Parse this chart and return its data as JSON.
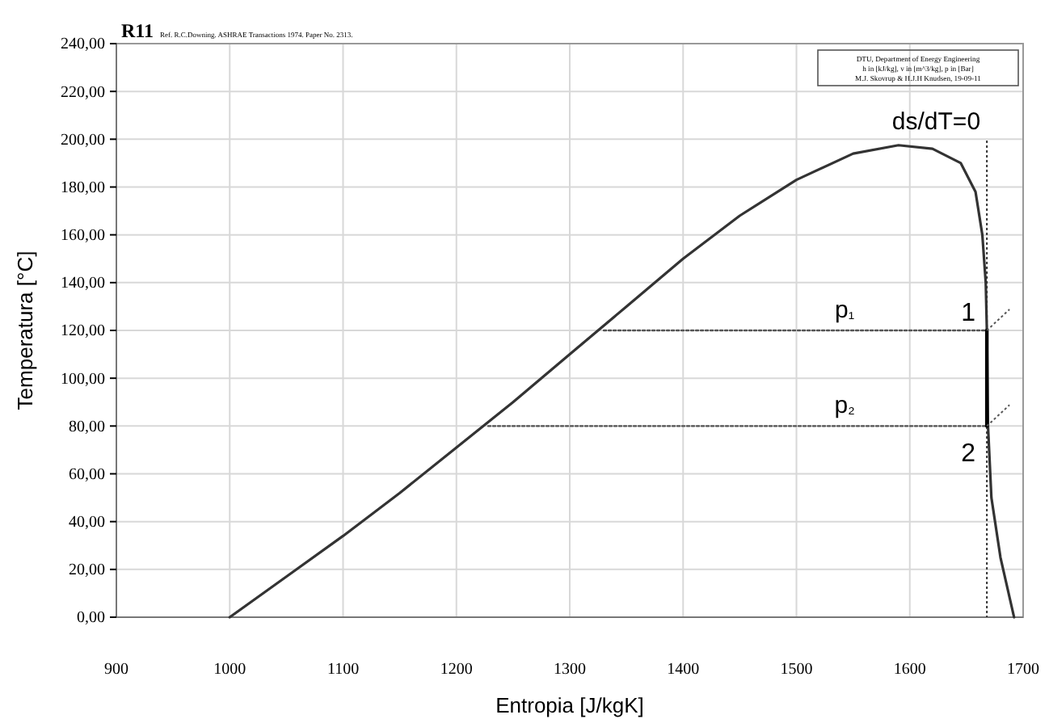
{
  "chart_data": {
    "type": "line",
    "title": "R11",
    "subtitle": "Ref. R.C.Downing. ASHRAE Transactions 1974. Paper No. 2313.",
    "xlabel": "Entropia [J/kgK]",
    "ylabel": "Temperatura [°C]",
    "xlim": [
      900,
      1700
    ],
    "xticks": [
      900,
      1000,
      1100,
      1200,
      1300,
      1400,
      1500,
      1600,
      1700
    ],
    "ylim": [
      0,
      240
    ],
    "yticks": [
      {
        "value": 0,
        "label": "0,00"
      },
      {
        "value": 20,
        "label": "20,00"
      },
      {
        "value": 40,
        "label": "40,00"
      },
      {
        "value": 60,
        "label": "60,00"
      },
      {
        "value": 80,
        "label": "80,00"
      },
      {
        "value": 100,
        "label": "100,00"
      },
      {
        "value": 120,
        "label": "120,00"
      },
      {
        "value": 140,
        "label": "140,00"
      },
      {
        "value": 160,
        "label": "160,00"
      },
      {
        "value": 180,
        "label": "180,00"
      },
      {
        "value": 200,
        "label": "200,00"
      },
      {
        "value": 220,
        "label": "220,00"
      },
      {
        "value": 240,
        "label": "240,00"
      }
    ],
    "grid": true,
    "legend": false,
    "series": [
      {
        "color": "#333333",
        "line_style": "solid",
        "x": [
          1000,
          1050,
          1100,
          1150,
          1200,
          1250,
          1300,
          1350,
          1400,
          1450,
          1500,
          1550,
          1590,
          1620,
          1645,
          1658,
          1664,
          1667,
          1668,
          1669,
          1672,
          1680,
          1692
        ],
        "values": [
          0,
          17,
          34,
          52,
          71,
          90,
          110,
          130,
          150,
          168,
          183,
          194,
          197.5,
          196,
          190,
          178,
          160,
          140,
          120,
          80,
          50,
          25,
          0
        ]
      },
      {
        "name": "p₁",
        "color": "#555555",
        "line_style": "dotted",
        "x": [
          1330,
          1668
        ],
        "values": [
          120,
          120
        ]
      },
      {
        "name": "p₂",
        "color": "#555555",
        "line_style": "dotted",
        "x": [
          1228,
          1668
        ],
        "values": [
          80,
          80
        ]
      },
      {
        "color": "#000000",
        "line_style": "solid",
        "x": [
          1668,
          1668
        ],
        "values": [
          120,
          80
        ]
      }
    ],
    "ref_lines": [
      {
        "axis": "x",
        "value": 1668,
        "line_style": "dotted",
        "color": "#333333"
      }
    ],
    "annotations": [
      "ds/dT=0",
      {
        "text": "1",
        "x": 1658,
        "y": 120
      },
      {
        "text": "2",
        "x": 1658,
        "y": 80
      },
      "DTU, Department of Energy Engineering",
      "h in [kJ/kg], v in [m^3/kg], p in [Bar]",
      "M.J. Skovrup & H.J.H Knudsen, 19-09-11"
    ]
  }
}
